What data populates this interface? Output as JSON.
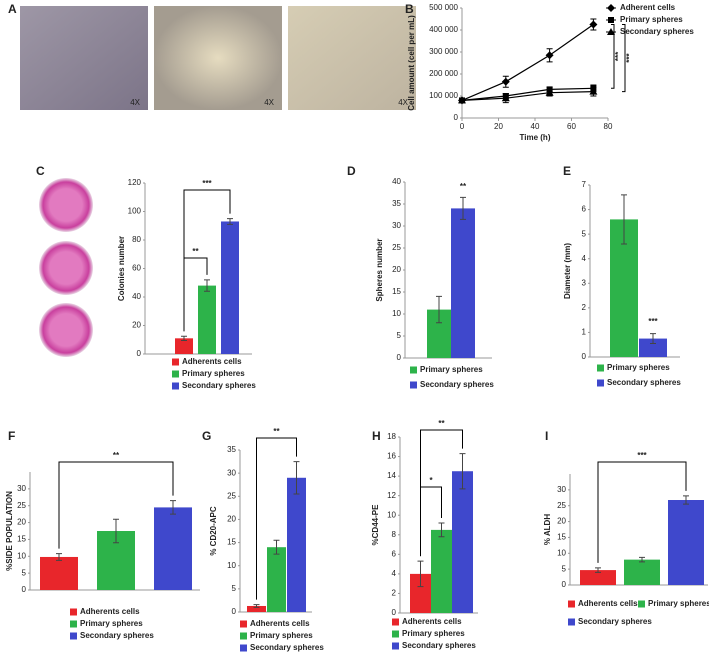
{
  "images": {
    "panel": "A",
    "labels": [
      "4X",
      "4X",
      "4X"
    ]
  },
  "chart_data": [
    {
      "type": "line",
      "panel": "B",
      "x": [
        0,
        24,
        48,
        72
      ],
      "xlim": [
        0,
        80
      ],
      "xticks": [
        0,
        20,
        40,
        60,
        80
      ],
      "xlabel": "Time (h)",
      "ylabel": "Cell amount (cell per mL)",
      "ylim": [
        0,
        500000
      ],
      "yticks": [
        0,
        {
          "value": 100000,
          "label": "100 000"
        },
        {
          "value": 200000,
          "label": "200 000"
        },
        {
          "value": 300000,
          "label": "300 000"
        },
        {
          "value": 400000,
          "label": "400 000"
        },
        {
          "value": 500000,
          "label": "500 000"
        }
      ],
      "series": [
        {
          "name": "Adherent cells",
          "color": "#000000",
          "marker": "diamond",
          "values": [
            80000,
            165000,
            285000,
            425000
          ],
          "errors": [
            5000,
            25000,
            30000,
            25000
          ]
        },
        {
          "name": "Primary spheres",
          "color": "#000000",
          "marker": "square",
          "values": [
            80000,
            100000,
            130000,
            135000
          ],
          "errors": [
            5000,
            10000,
            10000,
            15000
          ]
        },
        {
          "name": "Secondary spheres",
          "color": "#000000",
          "marker": "triangle",
          "values": [
            80000,
            90000,
            115000,
            120000
          ],
          "errors": [
            5000,
            20000,
            15000,
            20000
          ]
        }
      ],
      "annotations": [
        "***",
        "***"
      ]
    },
    {
      "type": "bar",
      "panel": "C",
      "ylabel": "Colonies number",
      "categories": [
        "Adherents cells",
        "Primary spheres",
        "Secondary spheres"
      ],
      "colors": [
        "#e8262b",
        "#2db34a",
        "#3f48cc"
      ],
      "values": [
        11,
        48,
        93
      ],
      "errors": [
        1.5,
        4,
        2
      ],
      "ylim": [
        0,
        120
      ],
      "yticks": [
        0,
        20,
        40,
        60,
        80,
        100,
        120
      ],
      "annotations": [
        "**",
        "***"
      ]
    },
    {
      "type": "bar",
      "panel": "D",
      "ylabel": "Spheres number",
      "categories": [
        "Primary spheres",
        "Secondary spheres"
      ],
      "colors": [
        "#2db34a",
        "#3f48cc"
      ],
      "values": [
        11,
        34
      ],
      "errors": [
        3,
        2.5
      ],
      "ylim": [
        0,
        40
      ],
      "yticks": [
        0,
        5,
        10,
        15,
        20,
        25,
        30,
        35,
        40
      ],
      "annotations": [
        "**"
      ]
    },
    {
      "type": "bar",
      "panel": "E",
      "ylabel": "Diameter (mm)",
      "categories": [
        "Primary spheres",
        "Secondary spheres"
      ],
      "colors": [
        "#2db34a",
        "#3f48cc"
      ],
      "values": [
        5.6,
        0.75
      ],
      "errors": [
        1,
        0.2
      ],
      "ylim": [
        0,
        7
      ],
      "yticks": [
        0,
        1,
        2,
        3,
        4,
        5,
        6,
        7
      ],
      "annotations": [
        "***"
      ]
    },
    {
      "type": "bar",
      "panel": "F",
      "ylabel": "%SIDE POPULATION",
      "categories": [
        "Adherents cells",
        "Primary spheres",
        "Secondary spheres"
      ],
      "colors": [
        "#e8262b",
        "#2db34a",
        "#3f48cc"
      ],
      "values": [
        9.8,
        17.5,
        24.5
      ],
      "errors": [
        1,
        3.5,
        2
      ],
      "ylim": [
        0,
        35
      ],
      "yticks": [
        0,
        5,
        10,
        15,
        20,
        25,
        30
      ],
      "annotations": [
        "**"
      ]
    },
    {
      "type": "bar",
      "panel": "G",
      "ylabel": "% CD20-APC",
      "categories": [
        "Adherents cells",
        "Primary spheres",
        "Secondary spheres"
      ],
      "colors": [
        "#e8262b",
        "#2db34a",
        "#3f48cc"
      ],
      "values": [
        1.3,
        14,
        29
      ],
      "errors": [
        0.3,
        1.5,
        3.5
      ],
      "ylim": [
        0,
        35
      ],
      "yticks": [
        0,
        5,
        10,
        15,
        20,
        25,
        30,
        35
      ],
      "annotations": [
        "**"
      ]
    },
    {
      "type": "bar",
      "panel": "H",
      "ylabel": "%CD44-PE",
      "categories": [
        "Adherents cells",
        "Primary spheres",
        "Secondary spheres"
      ],
      "colors": [
        "#e8262b",
        "#2db34a",
        "#3f48cc"
      ],
      "values": [
        4,
        8.5,
        14.5
      ],
      "errors": [
        1.3,
        0.7,
        1.8
      ],
      "ylim": [
        0,
        18
      ],
      "yticks": [
        0,
        2,
        4,
        6,
        8,
        10,
        12,
        14,
        16,
        18
      ],
      "annotations": [
        "*",
        "**"
      ]
    },
    {
      "type": "bar",
      "panel": "I",
      "ylabel": "% ALDH",
      "categories": [
        "Adherents cells",
        "Primary spheres",
        "Secondary spheres"
      ],
      "colors": [
        "#e8262b",
        "#2db34a",
        "#3f48cc"
      ],
      "values": [
        4.7,
        8,
        26.8
      ],
      "errors": [
        0.7,
        0.7,
        1.3
      ],
      "ylim": [
        0,
        35
      ],
      "yticks": [
        0,
        5,
        10,
        15,
        20,
        25,
        30
      ],
      "annotations": [
        "***"
      ]
    }
  ]
}
